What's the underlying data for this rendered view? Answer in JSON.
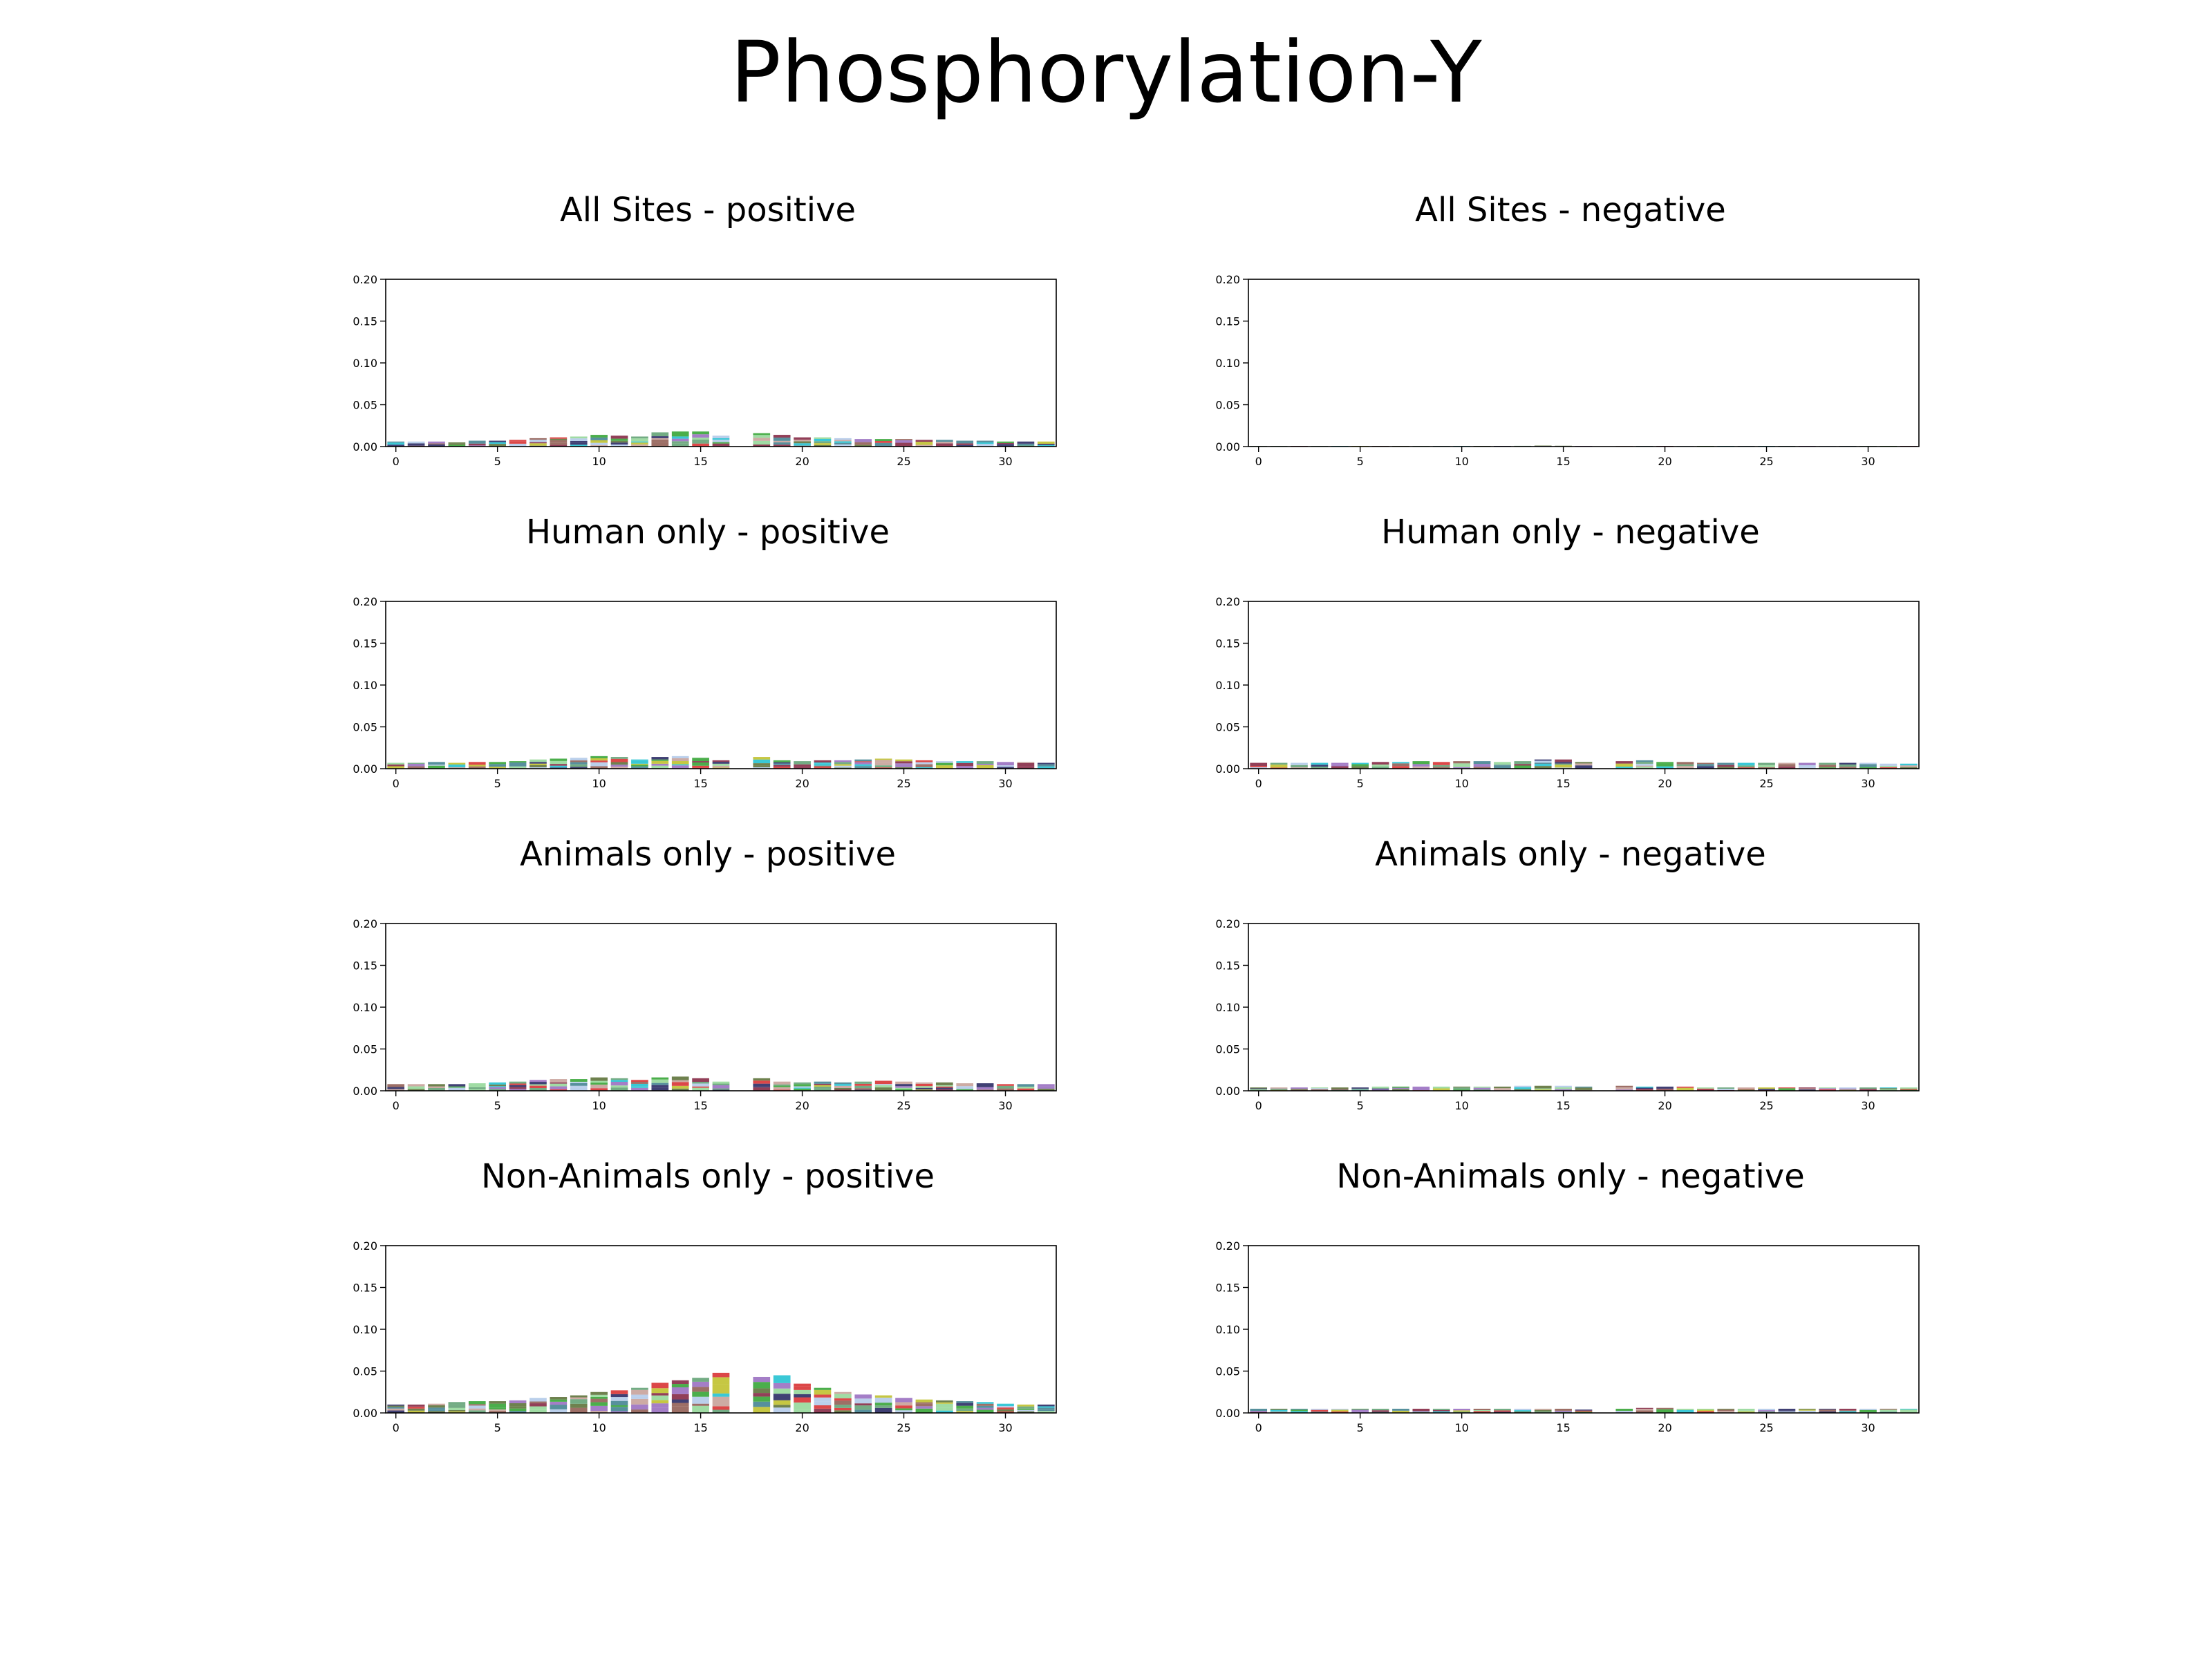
{
  "figure_title": "Phosphorylation-Y",
  "chart_data": [
    {
      "type": "bar",
      "title": "All Sites - positive",
      "ylim": [
        0,
        0.2
      ],
      "xlim": [
        -0.5,
        32.5
      ],
      "yticks": [
        "0.00",
        "0.05",
        "0.10",
        "0.15",
        "0.20"
      ],
      "xticks": [
        "0",
        "5",
        "10",
        "15",
        "20",
        "25",
        "30"
      ],
      "heights": [
        0.006,
        0.006,
        0.006,
        0.005,
        0.007,
        0.007,
        0.008,
        0.01,
        0.011,
        0.012,
        0.014,
        0.013,
        0.012,
        0.017,
        0.018,
        0.018,
        0.013,
        0,
        0.016,
        0.014,
        0.011,
        0.011,
        0.01,
        0.009,
        0.009,
        0.009,
        0.008,
        0.008,
        0.007,
        0.007,
        0.006,
        0.006,
        0.006
      ]
    },
    {
      "type": "bar",
      "title": "All Sites - negative",
      "ylim": [
        0,
        0.2
      ],
      "xlim": [
        -0.5,
        32.5
      ],
      "yticks": [
        "0.00",
        "0.05",
        "0.10",
        "0.15",
        "0.20"
      ],
      "xticks": [
        "0",
        "5",
        "10",
        "15",
        "20",
        "25",
        "30"
      ],
      "heights": [
        0.0003,
        0.0003,
        0.0003,
        0.0003,
        0.0003,
        0.0003,
        0.0003,
        0.0003,
        0.0003,
        0.0003,
        0.0004,
        0.0004,
        0.0004,
        0.0009,
        0.0012,
        0.001,
        0.0005,
        0,
        0.0005,
        0.0004,
        0.0004,
        0.0003,
        0.0003,
        0.0003,
        0.0003,
        0.0003,
        0.0003,
        0.0003,
        0.0003,
        0.0003,
        0.0003,
        0.0003,
        0.0003
      ]
    },
    {
      "type": "bar",
      "title": "Human only - positive",
      "ylim": [
        0,
        0.2
      ],
      "xlim": [
        -0.5,
        32.5
      ],
      "yticks": [
        "0.00",
        "0.05",
        "0.10",
        "0.15",
        "0.20"
      ],
      "xticks": [
        "0",
        "5",
        "10",
        "15",
        "20",
        "25",
        "30"
      ],
      "heights": [
        0.007,
        0.007,
        0.008,
        0.007,
        0.008,
        0.008,
        0.009,
        0.011,
        0.012,
        0.013,
        0.015,
        0.014,
        0.011,
        0.014,
        0.015,
        0.013,
        0.01,
        0,
        0.014,
        0.01,
        0.009,
        0.01,
        0.01,
        0.011,
        0.012,
        0.011,
        0.01,
        0.009,
        0.009,
        0.009,
        0.008,
        0.008,
        0.007
      ]
    },
    {
      "type": "bar",
      "title": "Human only - negative",
      "ylim": [
        0,
        0.2
      ],
      "xlim": [
        -0.5,
        32.5
      ],
      "yticks": [
        "0.00",
        "0.05",
        "0.10",
        "0.15",
        "0.20"
      ],
      "xticks": [
        "0",
        "5",
        "10",
        "15",
        "20",
        "25",
        "30"
      ],
      "heights": [
        0.007,
        0.007,
        0.007,
        0.007,
        0.007,
        0.007,
        0.008,
        0.008,
        0.009,
        0.008,
        0.009,
        0.009,
        0.008,
        0.009,
        0.011,
        0.011,
        0.008,
        0,
        0.009,
        0.01,
        0.008,
        0.008,
        0.007,
        0.007,
        0.007,
        0.007,
        0.007,
        0.007,
        0.007,
        0.007,
        0.007,
        0.006,
        0.006
      ]
    },
    {
      "type": "bar",
      "title": "Animals only - positive",
      "ylim": [
        0,
        0.2
      ],
      "xlim": [
        -0.5,
        32.5
      ],
      "yticks": [
        "0.00",
        "0.05",
        "0.10",
        "0.15",
        "0.20"
      ],
      "xticks": [
        "0",
        "5",
        "10",
        "15",
        "20",
        "25",
        "30"
      ],
      "heights": [
        0.008,
        0.008,
        0.008,
        0.008,
        0.009,
        0.01,
        0.011,
        0.013,
        0.014,
        0.014,
        0.016,
        0.015,
        0.013,
        0.016,
        0.017,
        0.015,
        0.011,
        0,
        0.015,
        0.011,
        0.01,
        0.011,
        0.01,
        0.011,
        0.012,
        0.011,
        0.01,
        0.01,
        0.009,
        0.009,
        0.008,
        0.008,
        0.008
      ]
    },
    {
      "type": "bar",
      "title": "Animals only - negative",
      "ylim": [
        0,
        0.2
      ],
      "xlim": [
        -0.5,
        32.5
      ],
      "yticks": [
        "0.00",
        "0.05",
        "0.10",
        "0.15",
        "0.20"
      ],
      "xticks": [
        "0",
        "5",
        "10",
        "15",
        "20",
        "25",
        "30"
      ],
      "heights": [
        0.004,
        0.004,
        0.004,
        0.004,
        0.004,
        0.004,
        0.005,
        0.005,
        0.005,
        0.005,
        0.005,
        0.005,
        0.005,
        0.006,
        0.006,
        0.006,
        0.005,
        0,
        0.006,
        0.005,
        0.005,
        0.005,
        0.004,
        0.004,
        0.004,
        0.004,
        0.004,
        0.004,
        0.004,
        0.004,
        0.004,
        0.004,
        0.004
      ]
    },
    {
      "type": "bar",
      "title": "Non-Animals only - positive",
      "ylim": [
        0,
        0.2
      ],
      "xlim": [
        -0.5,
        32.5
      ],
      "yticks": [
        "0.00",
        "0.05",
        "0.10",
        "0.15",
        "0.20"
      ],
      "xticks": [
        "0",
        "5",
        "10",
        "15",
        "20",
        "25",
        "30"
      ],
      "heights": [
        0.01,
        0.01,
        0.011,
        0.013,
        0.014,
        0.014,
        0.015,
        0.018,
        0.019,
        0.021,
        0.025,
        0.027,
        0.03,
        0.036,
        0.039,
        0.042,
        0.048,
        0,
        0.043,
        0.045,
        0.035,
        0.03,
        0.025,
        0.022,
        0.021,
        0.018,
        0.016,
        0.015,
        0.014,
        0.013,
        0.011,
        0.01,
        0.01
      ]
    },
    {
      "type": "bar",
      "title": "Non-Animals only - negative",
      "ylim": [
        0,
        0.2
      ],
      "xlim": [
        -0.5,
        32.5
      ],
      "yticks": [
        "0.00",
        "0.05",
        "0.10",
        "0.15",
        "0.20"
      ],
      "xticks": [
        "0",
        "5",
        "10",
        "15",
        "20",
        "25",
        "30"
      ],
      "heights": [
        0.005,
        0.005,
        0.005,
        0.005,
        0.005,
        0.005,
        0.005,
        0.005,
        0.005,
        0.005,
        0.005,
        0.005,
        0.005,
        0.005,
        0.005,
        0.005,
        0.004,
        0,
        0.005,
        0.006,
        0.006,
        0.005,
        0.005,
        0.005,
        0.005,
        0.005,
        0.005,
        0.005,
        0.005,
        0.005,
        0.005,
        0.005,
        0.005
      ]
    }
  ]
}
